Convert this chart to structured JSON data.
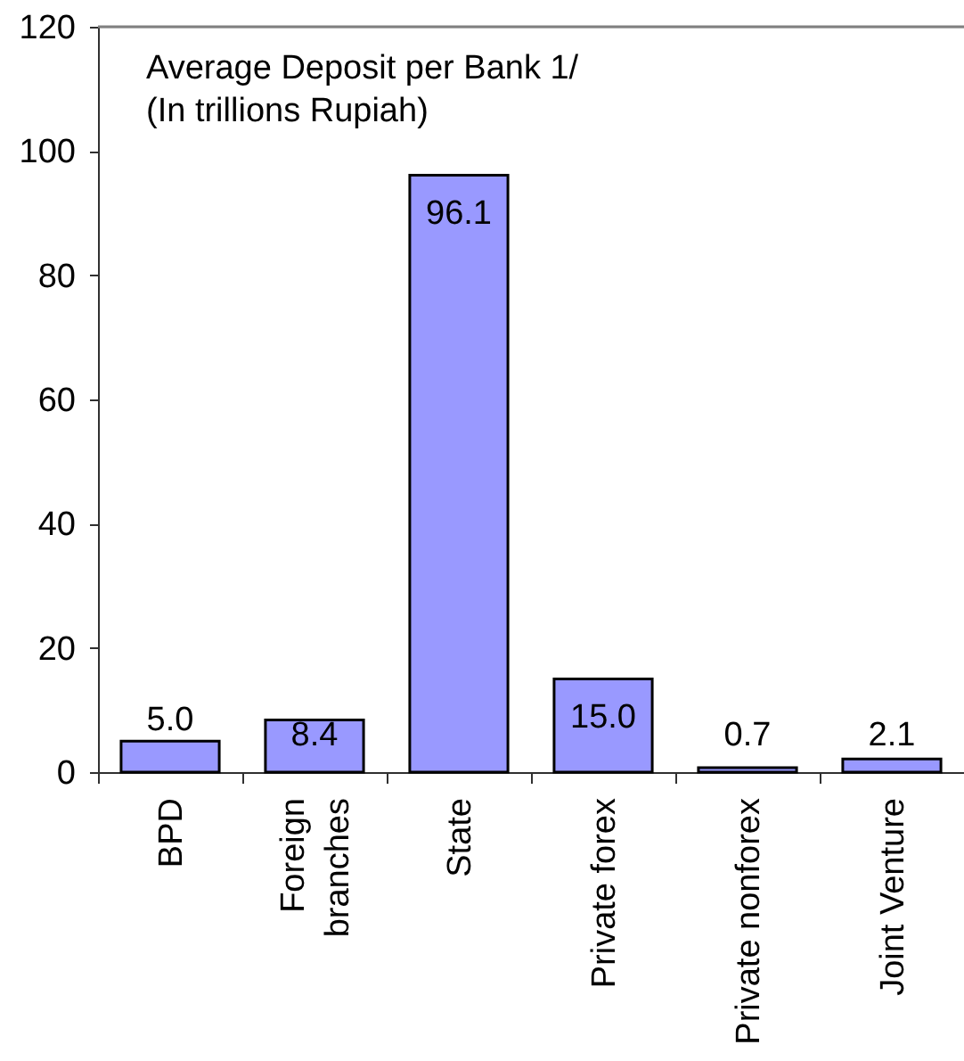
{
  "chart_data": {
    "type": "bar",
    "title": "Average Deposit per Bank 1/",
    "subtitle": "(In trillions Rupiah)",
    "categories": [
      "BPD",
      "Foreign\nbranches",
      "State",
      "Private forex",
      "Private nonforex",
      "Joint Venture"
    ],
    "values": [
      5.0,
      8.4,
      96.1,
      15.0,
      0.7,
      2.1
    ],
    "value_labels": [
      "5.0",
      "8.4",
      "96.1",
      "15.0",
      "0.7",
      "2.1"
    ],
    "color": "#9999ff",
    "ylim": [
      0,
      120
    ],
    "yticks": [
      0,
      20,
      40,
      60,
      80,
      100,
      120
    ]
  }
}
